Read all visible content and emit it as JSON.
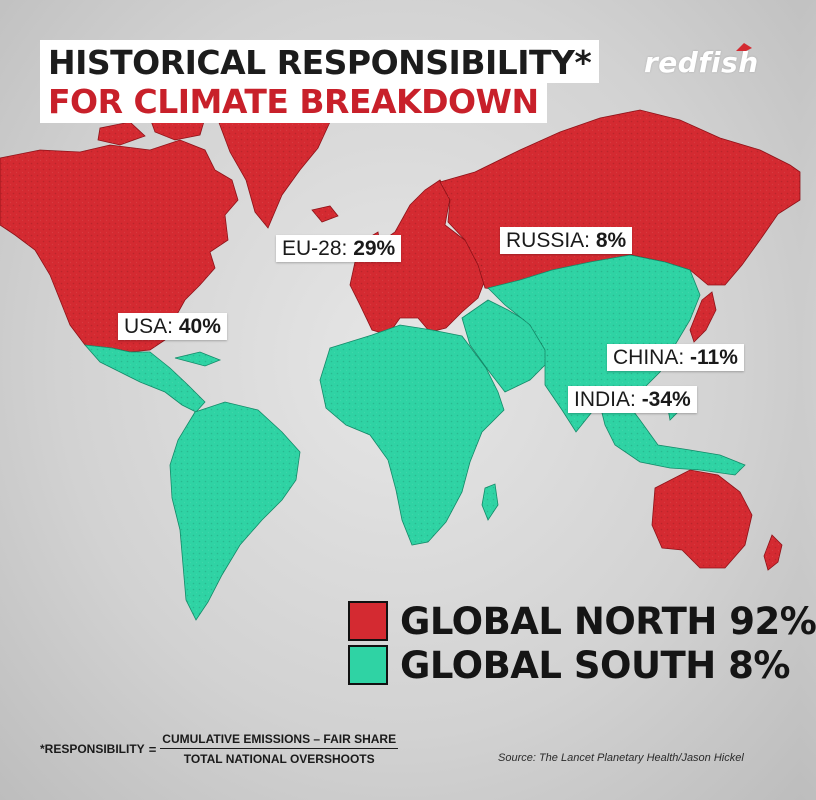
{
  "header": {
    "title_line1": "HISTORICAL RESPONSIBILITY*",
    "title_line2": "FOR CLIMATE BREAKDOWN"
  },
  "brand": {
    "logo_text": "redfish"
  },
  "colors": {
    "global_north": "#d42a31",
    "global_south": "#2fd3a4",
    "ocean": "#d6d6d6",
    "title_accent": "#c8202a"
  },
  "map": {
    "labels": [
      {
        "id": "eu",
        "region": "EU-28:",
        "value": "29%"
      },
      {
        "id": "russia",
        "region": "RUSSIA:",
        "value": "8%"
      },
      {
        "id": "usa",
        "region": "USA:",
        "value": "40%"
      },
      {
        "id": "china",
        "region": "CHINA:",
        "value": "-11%"
      },
      {
        "id": "india",
        "region": "INDIA:",
        "value": "-34%"
      }
    ]
  },
  "legend": {
    "north": {
      "label": "GLOBAL NORTH 92%"
    },
    "south": {
      "label": "GLOBAL SOUTH 8%"
    }
  },
  "footnote": {
    "prefix": "*RESPONSIBILITY",
    "equals": "=",
    "numerator": "CUMULATIVE EMISSIONS – FAIR SHARE",
    "denominator": "TOTAL NATIONAL OVERSHOOTS"
  },
  "source": "Source: The Lancet Planetary Health/Jason Hickel"
}
